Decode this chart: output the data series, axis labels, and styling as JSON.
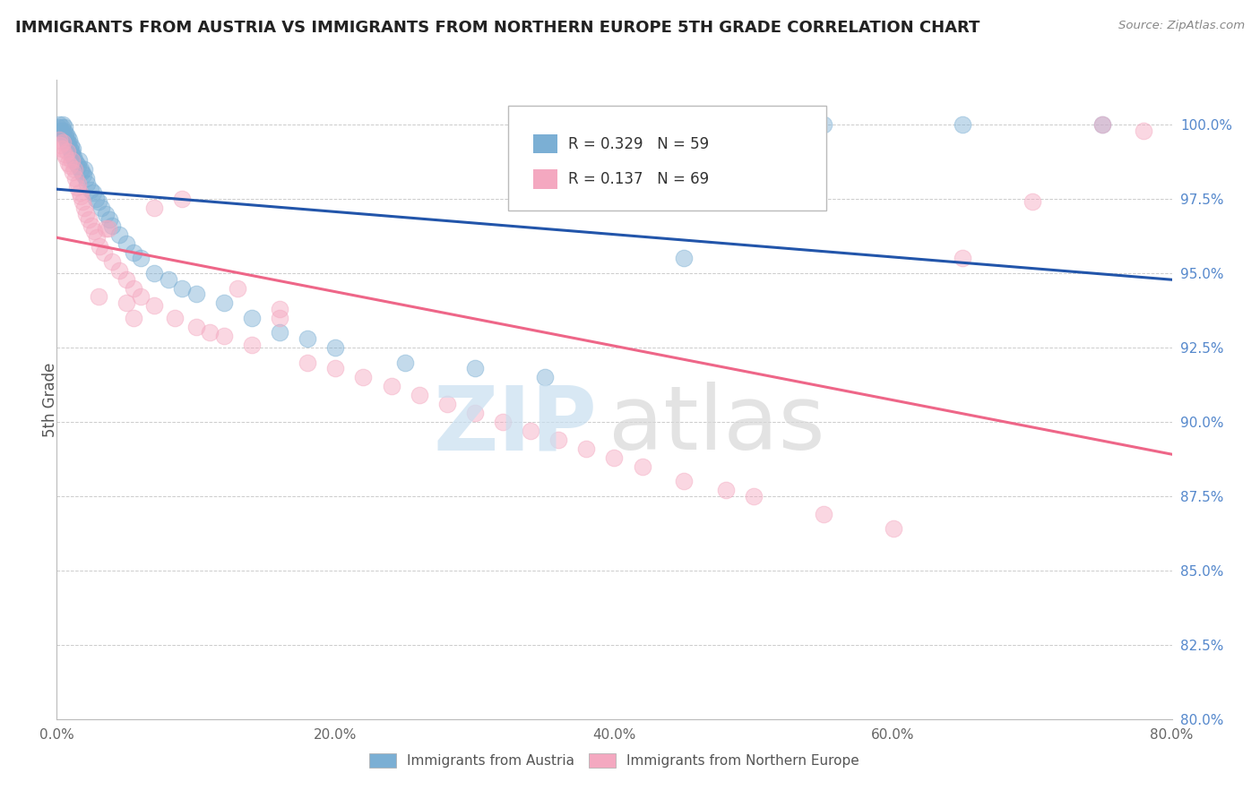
{
  "title": "IMMIGRANTS FROM AUSTRIA VS IMMIGRANTS FROM NORTHERN EUROPE 5TH GRADE CORRELATION CHART",
  "source": "Source: ZipAtlas.com",
  "ylabel": "5th Grade",
  "x_tick_values": [
    0.0,
    10.0,
    20.0,
    30.0,
    40.0,
    50.0,
    60.0,
    70.0,
    80.0
  ],
  "x_tick_labels": [
    "0.0%",
    "",
    "20.0%",
    "",
    "40.0%",
    "",
    "60.0%",
    "",
    "80.0%"
  ],
  "y_right_values": [
    100.0,
    97.5,
    95.0,
    92.5,
    90.0,
    87.5,
    85.0,
    82.5,
    80.0
  ],
  "y_right_labels": [
    "100.0%",
    "97.5%",
    "95.0%",
    "92.5%",
    "90.0%",
    "87.5%",
    "85.0%",
    "82.5%",
    "80.0%"
  ],
  "xlim": [
    0.0,
    80.0
  ],
  "ylim": [
    80.0,
    101.5
  ],
  "legend_austria_R": "0.329",
  "legend_austria_N": "59",
  "legend_northern_R": "0.137",
  "legend_northern_N": "69",
  "color_austria": "#7BAFD4",
  "color_northern": "#F4A8C0",
  "color_austria_line": "#2255AA",
  "color_northern_line": "#EE6688",
  "background_color": "#FFFFFF",
  "grid_color": "#CCCCCC",
  "blue_x": [
    0.1,
    0.2,
    0.3,
    0.35,
    0.4,
    0.45,
    0.5,
    0.55,
    0.6,
    0.65,
    0.7,
    0.75,
    0.8,
    0.85,
    0.9,
    0.95,
    1.0,
    1.05,
    1.1,
    1.15,
    1.2,
    1.3,
    1.4,
    1.5,
    1.6,
    1.7,
    1.8,
    1.9,
    2.0,
    2.1,
    2.2,
    2.4,
    2.6,
    2.8,
    3.0,
    3.2,
    3.5,
    3.8,
    4.0,
    4.5,
    5.0,
    5.5,
    6.0,
    7.0,
    8.0,
    9.0,
    10.0,
    12.0,
    14.0,
    16.0,
    18.0,
    20.0,
    25.0,
    30.0,
    35.0,
    45.0,
    55.0,
    65.0,
    75.0
  ],
  "blue_y": [
    99.9,
    100.0,
    99.8,
    99.9,
    99.7,
    100.0,
    99.8,
    99.9,
    99.7,
    99.6,
    99.5,
    99.6,
    99.4,
    99.3,
    99.5,
    99.2,
    99.3,
    99.1,
    99.0,
    99.2,
    98.9,
    98.8,
    98.7,
    98.6,
    98.8,
    98.5,
    98.4,
    98.3,
    98.5,
    98.2,
    98.0,
    97.8,
    97.7,
    97.5,
    97.4,
    97.2,
    97.0,
    96.8,
    96.6,
    96.3,
    96.0,
    95.7,
    95.5,
    95.0,
    94.8,
    94.5,
    94.3,
    94.0,
    93.5,
    93.0,
    92.8,
    92.5,
    92.0,
    91.8,
    91.5,
    95.5,
    100.0,
    100.0,
    100.0
  ],
  "pink_x": [
    0.15,
    0.25,
    0.35,
    0.45,
    0.55,
    0.65,
    0.75,
    0.85,
    0.95,
    1.05,
    1.15,
    1.25,
    1.35,
    1.45,
    1.55,
    1.65,
    1.75,
    1.85,
    1.95,
    2.1,
    2.3,
    2.5,
    2.7,
    2.9,
    3.1,
    3.4,
    3.7,
    4.0,
    4.5,
    5.0,
    5.5,
    6.0,
    7.0,
    8.5,
    10.0,
    12.0,
    14.0,
    16.0,
    18.0,
    20.0,
    22.0,
    24.0,
    26.0,
    28.0,
    30.0,
    32.0,
    34.0,
    36.0,
    38.0,
    40.0,
    42.0,
    45.0,
    48.0,
    50.0,
    55.0,
    60.0,
    65.0,
    70.0,
    75.0,
    78.0,
    3.5,
    5.5,
    7.0,
    9.0,
    11.0,
    13.0,
    16.0,
    3.0,
    5.0
  ],
  "pink_y": [
    99.5,
    99.3,
    99.2,
    99.4,
    99.0,
    98.9,
    99.1,
    98.7,
    98.6,
    98.8,
    98.4,
    98.5,
    98.2,
    97.9,
    98.0,
    97.7,
    97.6,
    97.4,
    97.2,
    97.0,
    96.8,
    96.6,
    96.4,
    96.2,
    95.9,
    95.7,
    96.5,
    95.4,
    95.1,
    94.8,
    94.5,
    94.2,
    93.9,
    93.5,
    93.2,
    92.9,
    92.6,
    93.5,
    92.0,
    91.8,
    91.5,
    91.2,
    90.9,
    90.6,
    90.3,
    90.0,
    89.7,
    89.4,
    89.1,
    88.8,
    88.5,
    88.0,
    87.7,
    87.5,
    86.9,
    86.4,
    95.5,
    97.4,
    100.0,
    99.8,
    96.5,
    93.5,
    97.2,
    97.5,
    93.0,
    94.5,
    93.8,
    94.2,
    94.0
  ]
}
